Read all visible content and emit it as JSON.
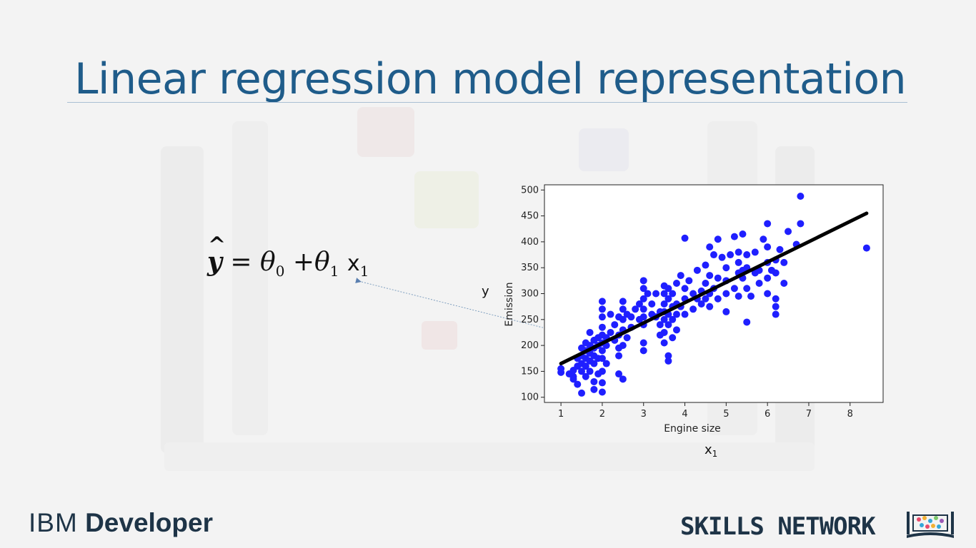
{
  "slide": {
    "title": "Linear regression model representation",
    "equation": {
      "lhs_hat": "^",
      "lhs": "y",
      "equals": "=",
      "theta": "θ",
      "sub0": "0",
      "plus": "+",
      "sub1": "1",
      "x": "x",
      "x_sub": "1"
    },
    "y_side_label": "y",
    "x1_label": {
      "x": "x",
      "sub": "1"
    },
    "arrow_color": "#7f9fbf"
  },
  "branding": {
    "ibm": "IBM",
    "developer": "Developer",
    "skills_network": "SKILLS NETWORK",
    "icon": "skills-network-books-icon"
  },
  "chart_data": {
    "type": "scatter",
    "title": "",
    "xlabel": "Engine size",
    "ylabel": "Emission",
    "xlim": [
      0.6,
      8.8
    ],
    "ylim": [
      90,
      510
    ],
    "xticks": [
      1,
      2,
      3,
      4,
      5,
      6,
      7,
      8
    ],
    "yticks": [
      100,
      150,
      200,
      250,
      300,
      350,
      400,
      450,
      500
    ],
    "grid": false,
    "point_color": "#1f1fff",
    "line_color": "#000000",
    "fit_line": {
      "x": [
        1.0,
        8.4
      ],
      "y": [
        165,
        455
      ]
    },
    "points": [
      [
        1.0,
        148
      ],
      [
        1.0,
        155
      ],
      [
        1.2,
        145
      ],
      [
        1.3,
        152
      ],
      [
        1.3,
        140
      ],
      [
        1.4,
        175
      ],
      [
        1.4,
        160
      ],
      [
        1.4,
        125
      ],
      [
        1.5,
        150
      ],
      [
        1.5,
        165
      ],
      [
        1.5,
        180
      ],
      [
        1.5,
        195
      ],
      [
        1.5,
        108
      ],
      [
        1.6,
        160
      ],
      [
        1.6,
        175
      ],
      [
        1.6,
        190
      ],
      [
        1.6,
        140
      ],
      [
        1.6,
        205
      ],
      [
        1.7,
        170
      ],
      [
        1.7,
        185
      ],
      [
        1.7,
        150
      ],
      [
        1.7,
        225
      ],
      [
        1.8,
        165
      ],
      [
        1.8,
        180
      ],
      [
        1.8,
        195
      ],
      [
        1.8,
        210
      ],
      [
        1.8,
        130
      ],
      [
        1.8,
        115
      ],
      [
        1.9,
        175
      ],
      [
        1.9,
        200
      ],
      [
        1.9,
        215
      ],
      [
        2.0,
        175
      ],
      [
        2.0,
        190
      ],
      [
        2.0,
        205
      ],
      [
        2.0,
        220
      ],
      [
        2.0,
        235
      ],
      [
        2.0,
        150
      ],
      [
        2.0,
        128
      ],
      [
        2.0,
        110
      ],
      [
        2.0,
        255
      ],
      [
        2.0,
        270
      ],
      [
        2.0,
        285
      ],
      [
        2.1,
        200
      ],
      [
        2.1,
        215
      ],
      [
        2.2,
        225
      ],
      [
        2.3,
        210
      ],
      [
        2.3,
        240
      ],
      [
        2.4,
        180
      ],
      [
        2.4,
        195
      ],
      [
        2.4,
        220
      ],
      [
        2.4,
        255
      ],
      [
        2.4,
        145
      ],
      [
        2.5,
        200
      ],
      [
        2.5,
        230
      ],
      [
        2.5,
        250
      ],
      [
        2.5,
        270
      ],
      [
        2.5,
        285
      ],
      [
        2.5,
        135
      ],
      [
        2.6,
        260
      ],
      [
        2.7,
        235
      ],
      [
        2.7,
        255
      ],
      [
        2.8,
        270
      ],
      [
        2.9,
        250
      ],
      [
        2.9,
        280
      ],
      [
        3.0,
        240
      ],
      [
        3.0,
        255
      ],
      [
        3.0,
        270
      ],
      [
        3.0,
        290
      ],
      [
        3.0,
        310
      ],
      [
        3.0,
        325
      ],
      [
        3.0,
        205
      ],
      [
        3.0,
        190
      ],
      [
        3.2,
        260
      ],
      [
        3.2,
        280
      ],
      [
        3.3,
        255
      ],
      [
        3.3,
        300
      ],
      [
        3.4,
        265
      ],
      [
        3.4,
        240
      ],
      [
        3.5,
        250
      ],
      [
        3.5,
        265
      ],
      [
        3.5,
        280
      ],
      [
        3.5,
        300
      ],
      [
        3.5,
        315
      ],
      [
        3.5,
        225
      ],
      [
        3.5,
        205
      ],
      [
        3.6,
        240
      ],
      [
        3.6,
        260
      ],
      [
        3.6,
        290
      ],
      [
        3.6,
        310
      ],
      [
        3.6,
        180
      ],
      [
        3.6,
        170
      ],
      [
        3.7,
        250
      ],
      [
        3.7,
        275
      ],
      [
        3.7,
        300
      ],
      [
        3.8,
        260
      ],
      [
        3.8,
        280
      ],
      [
        3.8,
        320
      ],
      [
        3.8,
        230
      ],
      [
        3.9,
        275
      ],
      [
        3.9,
        335
      ],
      [
        4.0,
        260
      ],
      [
        4.0,
        290
      ],
      [
        4.0,
        310
      ],
      [
        4.1,
        325
      ],
      [
        4.2,
        270
      ],
      [
        4.2,
        300
      ],
      [
        4.3,
        345
      ],
      [
        4.4,
        280
      ],
      [
        4.4,
        305
      ],
      [
        4.5,
        290
      ],
      [
        4.5,
        320
      ],
      [
        4.5,
        355
      ],
      [
        4.6,
        275
      ],
      [
        4.6,
        300
      ],
      [
        4.6,
        335
      ],
      [
        4.7,
        310
      ],
      [
        4.7,
        375
      ],
      [
        4.8,
        290
      ],
      [
        4.8,
        330
      ],
      [
        4.8,
        405
      ],
      [
        5.0,
        265
      ],
      [
        5.0,
        300
      ],
      [
        5.0,
        325
      ],
      [
        5.0,
        350
      ],
      [
        5.2,
        310
      ],
      [
        5.3,
        295
      ],
      [
        5.3,
        340
      ],
      [
        5.3,
        360
      ],
      [
        5.3,
        380
      ],
      [
        5.4,
        330
      ],
      [
        5.4,
        415
      ],
      [
        5.5,
        310
      ],
      [
        5.5,
        350
      ],
      [
        5.5,
        375
      ],
      [
        5.5,
        245
      ],
      [
        5.6,
        295
      ],
      [
        5.7,
        340
      ],
      [
        5.7,
        380
      ],
      [
        5.8,
        320
      ],
      [
        5.8,
        345
      ],
      [
        6.0,
        300
      ],
      [
        6.0,
        330
      ],
      [
        6.0,
        360
      ],
      [
        6.0,
        390
      ],
      [
        6.0,
        435
      ],
      [
        6.2,
        290
      ],
      [
        6.2,
        340
      ],
      [
        6.2,
        365
      ],
      [
        6.2,
        275
      ],
      [
        6.2,
        260
      ],
      [
        6.4,
        320
      ],
      [
        6.4,
        360
      ],
      [
        6.5,
        420
      ],
      [
        6.7,
        395
      ],
      [
        6.8,
        435
      ],
      [
        6.8,
        488
      ],
      [
        8.4,
        388
      ],
      [
        4.0,
        407
      ],
      [
        4.6,
        390
      ],
      [
        5.2,
        410
      ],
      [
        2.1,
        165
      ],
      [
        1.9,
        145
      ],
      [
        3.1,
        300
      ],
      [
        3.4,
        220
      ],
      [
        4.3,
        290
      ],
      [
        5.1,
        375
      ],
      [
        5.9,
        405
      ],
      [
        6.3,
        385
      ],
      [
        4.9,
        370
      ],
      [
        3.7,
        215
      ],
      [
        2.2,
        260
      ],
      [
        2.6,
        215
      ],
      [
        1.3,
        135
      ],
      [
        1.7,
        200
      ],
      [
        5.4,
        345
      ],
      [
        6.1,
        345
      ]
    ]
  }
}
